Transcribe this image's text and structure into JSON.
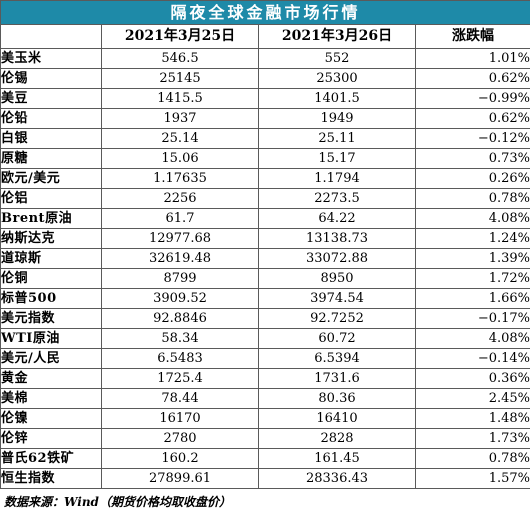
{
  "title": "隔夜全球金融市场行情",
  "headers": [
    "",
    "2021年3月25日",
    "2021年3月26日",
    "涨跌幅"
  ],
  "rows": [
    {
      "name": "美玉米",
      "v1": "546.5",
      "v2": "552",
      "chg": "1.01%"
    },
    {
      "name": "伦锡",
      "v1": "25145",
      "v2": "25300",
      "chg": "0.62%"
    },
    {
      "name": "美豆",
      "v1": "1415.5",
      "v2": "1401.5",
      "chg": "−0.99%"
    },
    {
      "name": "伦铅",
      "v1": "1937",
      "v2": "1949",
      "chg": "0.62%"
    },
    {
      "name": "白银",
      "v1": "25.14",
      "v2": "25.11",
      "chg": "−0.12%"
    },
    {
      "name": "原糖",
      "v1": "15.06",
      "v2": "15.17",
      "chg": "0.73%"
    },
    {
      "name": "欧元/美元",
      "v1": "1.17635",
      "v2": "1.1794",
      "chg": "0.26%"
    },
    {
      "name": "伦铝",
      "v1": "2256",
      "v2": "2273.5",
      "chg": "0.78%"
    },
    {
      "name": "Brent原油",
      "v1": "61.7",
      "v2": "64.22",
      "chg": "4.08%"
    },
    {
      "name": "纳斯达克",
      "v1": "12977.68",
      "v2": "13138.73",
      "chg": "1.24%"
    },
    {
      "name": "道琼斯",
      "v1": "32619.48",
      "v2": "33072.88",
      "chg": "1.39%"
    },
    {
      "name": "伦铜",
      "v1": "8799",
      "v2": "8950",
      "chg": "1.72%"
    },
    {
      "name": "标普500",
      "v1": "3909.52",
      "v2": "3974.54",
      "chg": "1.66%"
    },
    {
      "name": "美元指数",
      "v1": "92.8846",
      "v2": "92.7252",
      "chg": "−0.17%"
    },
    {
      "name": "WTI原油",
      "v1": "58.34",
      "v2": "60.72",
      "chg": "4.08%"
    },
    {
      "name": "美元/人民",
      "v1": "6.5483",
      "v2": "6.5394",
      "chg": "−0.14%"
    },
    {
      "name": "黄金",
      "v1": "1725.4",
      "v2": "1731.6",
      "chg": "0.36%"
    },
    {
      "name": "美棉",
      "v1": "78.44",
      "v2": "80.36",
      "chg": "2.45%"
    },
    {
      "name": "伦镍",
      "v1": "16170",
      "v2": "16410",
      "chg": "1.48%"
    },
    {
      "name": "伦锌",
      "v1": "2780",
      "v2": "2828",
      "chg": "1.73%"
    },
    {
      "name": "普氏62铁矿",
      "v1": "160.2",
      "v2": "161.45",
      "chg": "0.78%"
    },
    {
      "name": "恒生指数",
      "v1": "27899.61",
      "v2": "28336.43",
      "chg": "1.57%"
    }
  ],
  "source": "数据来源：Wind（期货价格均取收盘价）",
  "colors": {
    "title_bg": "#1e8aa8",
    "title_text": "#ffffff",
    "border": "#5a5a5a"
  }
}
